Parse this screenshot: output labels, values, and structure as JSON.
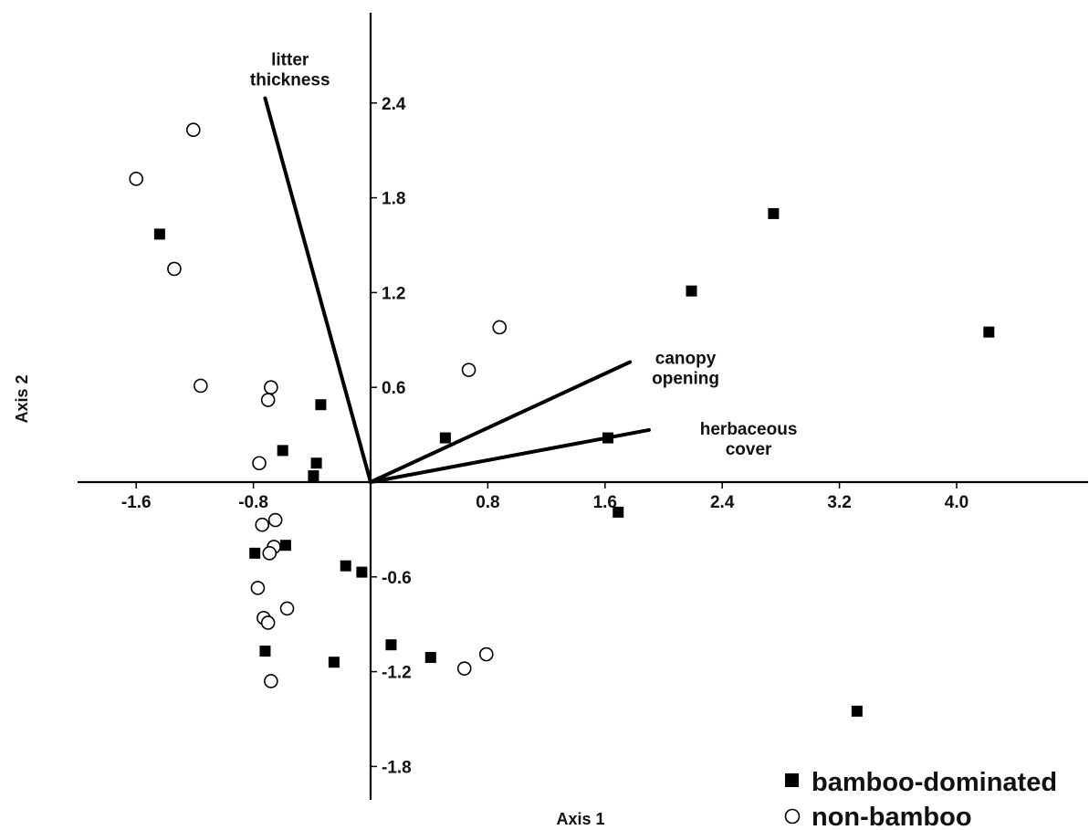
{
  "chart_data": {
    "type": "scatter",
    "xlabel": "Axis 1",
    "ylabel": "Axis 2",
    "xlim": [
      -2.5,
      6.0
    ],
    "ylim": [
      -2.0,
      3.0
    ],
    "x_ticks": [
      {
        "value": -1.6,
        "label": "-1.6"
      },
      {
        "value": -0.8,
        "label": "-0.8"
      },
      {
        "value": 0.8,
        "label": "0.8"
      },
      {
        "value": 1.6,
        "label": "1.6"
      },
      {
        "value": 2.4,
        "label": "2.4"
      },
      {
        "value": 3.2,
        "label": "3.2"
      },
      {
        "value": 4.0,
        "label": "4.0"
      }
    ],
    "y_ticks": [
      {
        "value": 2.4,
        "label": "2.4"
      },
      {
        "value": 1.8,
        "label": "1.8"
      },
      {
        "value": 1.2,
        "label": "1.2"
      },
      {
        "value": 0.6,
        "label": "0.6"
      },
      {
        "value": -0.6,
        "label": "-0.6"
      },
      {
        "value": -1.2,
        "label": "-1.2"
      },
      {
        "value": -1.8,
        "label": "-1.8"
      }
    ],
    "grid": false,
    "legend_position": "bottom-right",
    "series": [
      {
        "name": "bamboo-dominated",
        "marker": "filled-square",
        "color": "#000000",
        "points": [
          {
            "x": -1.44,
            "y": 1.57
          },
          {
            "x": -0.34,
            "y": 0.49
          },
          {
            "x": -0.6,
            "y": 0.2
          },
          {
            "x": -0.37,
            "y": 0.12
          },
          {
            "x": -0.39,
            "y": 0.04
          },
          {
            "x": 0.51,
            "y": 0.28
          },
          {
            "x": 1.62,
            "y": 0.28
          },
          {
            "x": 1.69,
            "y": -0.19
          },
          {
            "x": 2.19,
            "y": 1.21
          },
          {
            "x": 2.75,
            "y": 1.7
          },
          {
            "x": 4.22,
            "y": 0.95
          },
          {
            "x": 3.32,
            "y": -1.45
          },
          {
            "x": -0.58,
            "y": -0.4
          },
          {
            "x": -0.79,
            "y": -0.45
          },
          {
            "x": -0.17,
            "y": -0.53
          },
          {
            "x": -0.06,
            "y": -0.57
          },
          {
            "x": -0.72,
            "y": -1.07
          },
          {
            "x": -0.25,
            "y": -1.14
          },
          {
            "x": 0.14,
            "y": -1.03
          },
          {
            "x": 0.41,
            "y": -1.11
          }
        ]
      },
      {
        "name": "non-bamboo",
        "marker": "open-circle",
        "color": "#000000",
        "points": [
          {
            "x": -1.21,
            "y": 2.23
          },
          {
            "x": -1.6,
            "y": 1.92
          },
          {
            "x": -1.34,
            "y": 1.35
          },
          {
            "x": -1.16,
            "y": 0.61
          },
          {
            "x": -0.68,
            "y": 0.6
          },
          {
            "x": -0.7,
            "y": 0.52
          },
          {
            "x": -0.76,
            "y": 0.12
          },
          {
            "x": 0.67,
            "y": 0.71
          },
          {
            "x": 0.88,
            "y": 0.98
          },
          {
            "x": -0.65,
            "y": -0.24
          },
          {
            "x": -0.74,
            "y": -0.27
          },
          {
            "x": -0.66,
            "y": -0.41
          },
          {
            "x": -0.69,
            "y": -0.45
          },
          {
            "x": -0.77,
            "y": -0.67
          },
          {
            "x": -0.57,
            "y": -0.8
          },
          {
            "x": -0.73,
            "y": -0.86
          },
          {
            "x": -0.7,
            "y": -0.89
          },
          {
            "x": -0.68,
            "y": -1.26
          },
          {
            "x": 0.64,
            "y": -1.18
          },
          {
            "x": 0.79,
            "y": -1.09
          }
        ]
      }
    ],
    "vectors": [
      {
        "name": "litter-thickness",
        "label_lines": [
          "litter",
          "thickness"
        ],
        "x": -0.72,
        "y": 2.43,
        "label_x": -0.55,
        "label_y": 2.64
      },
      {
        "name": "canopy-opening",
        "label_lines": [
          "canopy",
          "opening"
        ],
        "x": 1.77,
        "y": 0.76,
        "label_x": 2.15,
        "label_y": 0.75
      },
      {
        "name": "herbaceous-cover",
        "label_lines": [
          "herbaceous",
          "cover"
        ],
        "x": 1.9,
        "y": 0.33,
        "label_x": 2.58,
        "label_y": 0.3
      }
    ]
  }
}
